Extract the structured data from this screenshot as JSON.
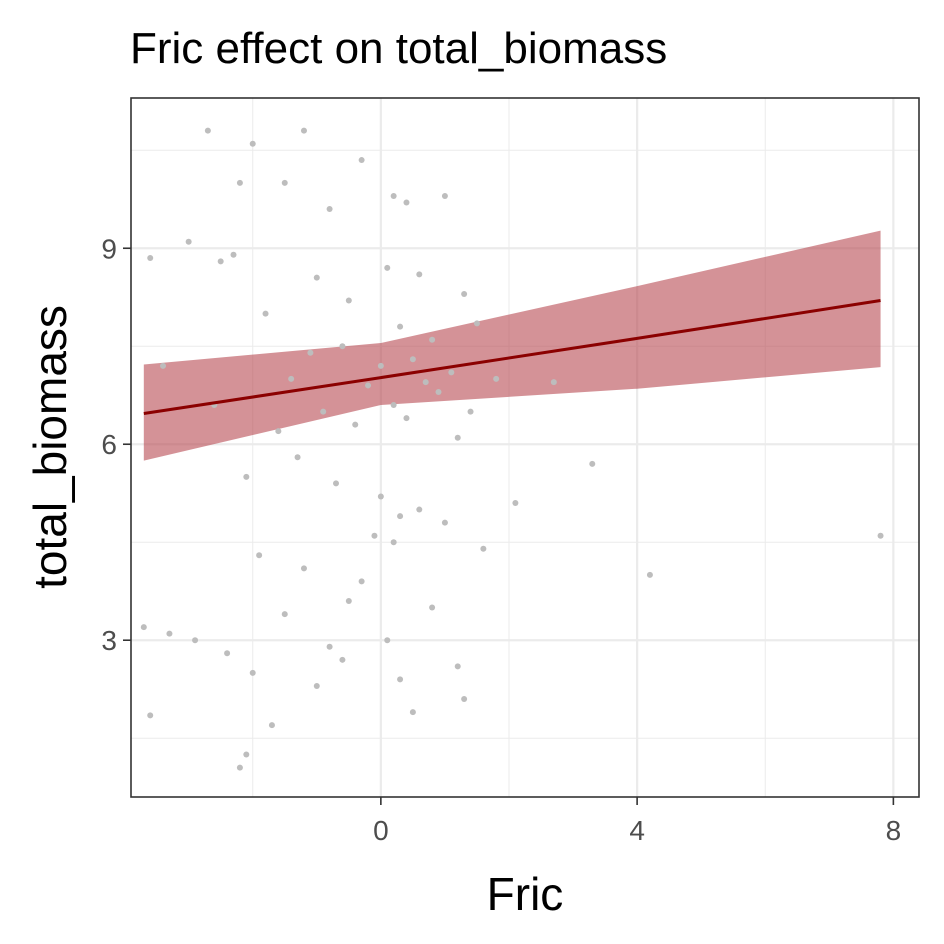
{
  "chart_data": {
    "type": "scatter",
    "title": "Fric effect on total_biomass",
    "xlabel": "Fric",
    "ylabel": "total_biomass",
    "xlim": [
      -3.9,
      8.4
    ],
    "ylim": [
      0.6,
      11.3
    ],
    "x_ticks": [
      0,
      4,
      8
    ],
    "x_tick_labels": [
      "0",
      "4",
      "8"
    ],
    "y_ticks": [
      3,
      6,
      9
    ],
    "y_tick_labels": [
      "3",
      "6",
      "9"
    ],
    "x_minor_ticks": [
      -2,
      2,
      6
    ],
    "y_minor_ticks": [
      1.5,
      4.5,
      7.5,
      10.5
    ],
    "grid": true,
    "legend": "none",
    "colors": {
      "points": "#bdbdbd",
      "fit_line": "#8b0000",
      "ribbon": "#b5434b",
      "grid": "#ebebeb",
      "panel_border": "#333333"
    },
    "fit": {
      "x": [
        -3.7,
        0,
        4,
        7.8
      ],
      "y": [
        6.47,
        7.02,
        7.62,
        8.2
      ]
    },
    "ribbon": {
      "x": [
        -3.7,
        0,
        4,
        7.8
      ],
      "lower": [
        5.75,
        6.6,
        6.85,
        7.18
      ],
      "upper": [
        7.22,
        7.55,
        8.42,
        9.27
      ]
    },
    "points": {
      "x": [
        -2.7,
        -1.2,
        -2.0,
        -0.3,
        0.2,
        -1.5,
        -2.2,
        -0.8,
        0.4,
        1.0,
        -3.0,
        -3.6,
        -2.5,
        -1.0,
        0.6,
        -0.5,
        0.1,
        1.3,
        -1.8,
        -2.3,
        0.3,
        0.8,
        1.5,
        -1.1,
        -0.6,
        0.0,
        0.5,
        1.1,
        -1.4,
        -0.2,
        0.7,
        1.8,
        2.7,
        -3.4,
        -2.6,
        -0.9,
        0.2,
        0.9,
        1.4,
        -1.6,
        -0.4,
        0.4,
        1.2,
        3.3,
        2.1,
        -2.1,
        -1.3,
        -0.7,
        0.0,
        0.6,
        1.0,
        -3.7,
        -2.9,
        -1.9,
        -0.1,
        0.3,
        1.6,
        4.2,
        7.8,
        -3.3,
        -2.4,
        -1.5,
        -0.8,
        0.1,
        1.3,
        -3.6,
        -2.0,
        -1.0,
        0.3,
        1.2,
        -2.2,
        -1.7,
        -0.6,
        0.5,
        -1.2,
        -0.3,
        0.2,
        0.8,
        -2.1,
        -0.5
      ],
      "y": [
        10.8,
        10.8,
        10.6,
        10.35,
        9.8,
        10.0,
        10.0,
        9.6,
        9.7,
        9.8,
        9.1,
        8.85,
        8.8,
        8.55,
        8.6,
        8.2,
        8.7,
        8.3,
        8.0,
        8.9,
        7.8,
        7.6,
        7.85,
        7.4,
        7.5,
        7.2,
        7.3,
        7.1,
        7.0,
        6.9,
        6.95,
        7.0,
        6.95,
        7.2,
        6.6,
        6.5,
        6.6,
        6.8,
        6.5,
        6.2,
        6.3,
        6.4,
        6.1,
        5.7,
        5.1,
        5.5,
        5.8,
        5.4,
        5.2,
        5.0,
        4.8,
        3.2,
        3.0,
        4.3,
        4.6,
        4.9,
        4.4,
        4.0,
        4.6,
        3.1,
        2.8,
        3.4,
        2.9,
        3.0,
        2.1,
        1.85,
        2.5,
        2.3,
        2.4,
        2.6,
        1.05,
        1.7,
        2.7,
        1.9,
        4.1,
        3.9,
        4.5,
        3.5,
        1.25,
        3.6
      ]
    }
  }
}
